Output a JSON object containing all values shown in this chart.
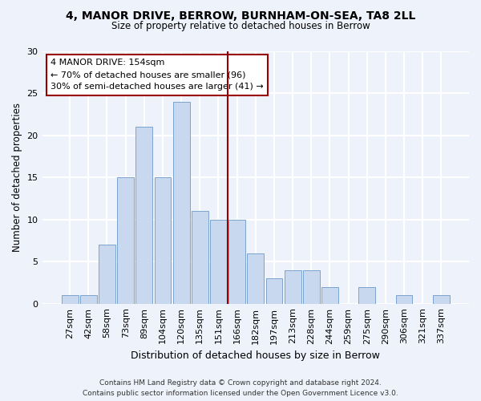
{
  "title1": "4, MANOR DRIVE, BERROW, BURNHAM-ON-SEA, TA8 2LL",
  "title2": "Size of property relative to detached houses in Berrow",
  "xlabel": "Distribution of detached houses by size in Berrow",
  "ylabel": "Number of detached properties",
  "bar_labels": [
    "27sqm",
    "42sqm",
    "58sqm",
    "73sqm",
    "89sqm",
    "104sqm",
    "120sqm",
    "135sqm",
    "151sqm",
    "166sqm",
    "182sqm",
    "197sqm",
    "213sqm",
    "228sqm",
    "244sqm",
    "259sqm",
    "275sqm",
    "290sqm",
    "306sqm",
    "321sqm",
    "337sqm"
  ],
  "bar_values": [
    1,
    1,
    7,
    15,
    21,
    15,
    24,
    11,
    10,
    10,
    6,
    3,
    4,
    4,
    2,
    0,
    2,
    0,
    1,
    0,
    1
  ],
  "bar_color": "#c8d8ee",
  "bar_edge_color": "#7ba4cc",
  "vline_x": 8.5,
  "vline_color": "#990000",
  "annotation_line1": "4 MANOR DRIVE: 154sqm",
  "annotation_line2": "← 70% of detached houses are smaller (96)",
  "annotation_line3": "30% of semi-detached houses are larger (41) →",
  "annotation_box_color": "#ffffff",
  "annotation_box_edge": "#990000",
  "ylim": [
    0,
    30
  ],
  "yticks": [
    0,
    5,
    10,
    15,
    20,
    25,
    30
  ],
  "bg_color": "#eef2fa",
  "grid_color": "#ffffff",
  "footer_line1": "Contains HM Land Registry data © Crown copyright and database right 2024.",
  "footer_line2": "Contains public sector information licensed under the Open Government Licence v3.0."
}
